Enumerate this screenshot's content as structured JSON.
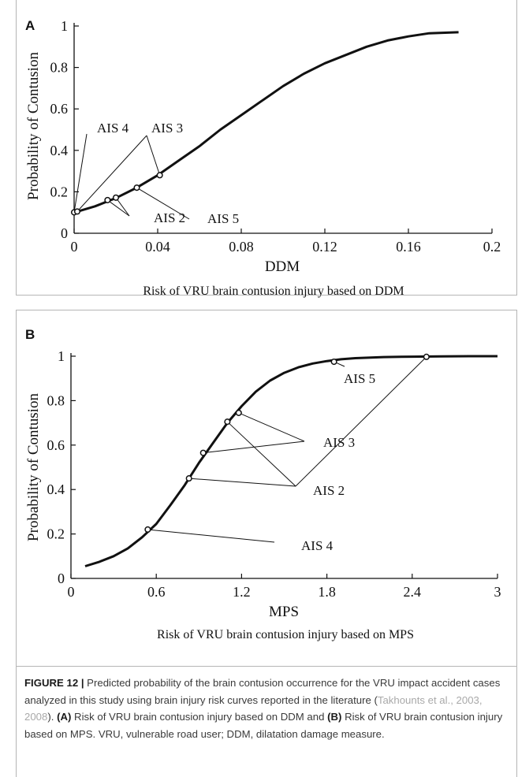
{
  "chart_data": [
    {
      "panel": "A",
      "type": "line",
      "xlabel": "DDM",
      "ylabel": "Probability of Contusion",
      "subtitle": "Risk of VRU brain contusion injury based on DDM",
      "xlim": [
        0,
        0.2
      ],
      "ylim": [
        0,
        1
      ],
      "xticks": [
        0,
        0.04,
        0.08,
        0.12,
        0.16,
        0.2
      ],
      "xtick_labels": [
        "0",
        "0.04",
        "0.08",
        "0.12",
        "0.16",
        "0.2"
      ],
      "yticks": [
        0,
        0.2,
        0.4,
        0.6,
        0.8,
        1
      ],
      "ytick_labels": [
        "0",
        "0.2",
        "0.4",
        "0.6",
        "0.8",
        "1"
      ],
      "curve": {
        "x": [
          0,
          0.01,
          0.02,
          0.03,
          0.04,
          0.05,
          0.06,
          0.07,
          0.08,
          0.09,
          0.1,
          0.11,
          0.12,
          0.13,
          0.14,
          0.15,
          0.16,
          0.17,
          0.184
        ],
        "y": [
          0.1,
          0.13,
          0.17,
          0.22,
          0.28,
          0.35,
          0.42,
          0.5,
          0.57,
          0.64,
          0.71,
          0.77,
          0.82,
          0.86,
          0.9,
          0.93,
          0.95,
          0.965,
          0.97
        ]
      },
      "points": [
        {
          "x": 0.0,
          "y": 0.101
        },
        {
          "x": 0.0015,
          "y": 0.105
        },
        {
          "x": 0.016,
          "y": 0.16
        },
        {
          "x": 0.02,
          "y": 0.172
        },
        {
          "x": 0.03,
          "y": 0.22
        },
        {
          "x": 0.041,
          "y": 0.28
        }
      ],
      "annotations": [
        {
          "label": "AIS 4",
          "points": [
            0
          ]
        },
        {
          "label": "AIS 3",
          "points": [
            1,
            5
          ]
        },
        {
          "label": "AIS 2",
          "points": [
            2,
            3
          ]
        },
        {
          "label": "AIS 5",
          "points": [
            4
          ]
        }
      ]
    },
    {
      "panel": "B",
      "type": "line",
      "xlabel": "MPS",
      "ylabel": "Probability of Contusion",
      "subtitle": "Risk of VRU brain contusion injury based on MPS",
      "xlim": [
        0,
        3
      ],
      "ylim": [
        0,
        1
      ],
      "xticks": [
        0,
        0.6,
        1.2,
        1.8,
        2.4,
        3
      ],
      "xtick_labels": [
        "0",
        "0.6",
        "1.2",
        "1.8",
        "2.4",
        "3"
      ],
      "yticks": [
        0,
        0.2,
        0.4,
        0.6,
        0.8,
        1
      ],
      "ytick_labels": [
        "0",
        "0.2",
        "0.4",
        "0.6",
        "0.8",
        "1"
      ],
      "curve": {
        "x": [
          0.1,
          0.2,
          0.3,
          0.4,
          0.5,
          0.6,
          0.7,
          0.8,
          0.9,
          1.0,
          1.1,
          1.2,
          1.3,
          1.4,
          1.5,
          1.6,
          1.7,
          1.8,
          1.9,
          2.0,
          2.2,
          2.4,
          2.6,
          2.8,
          3.0
        ],
        "y": [
          0.055,
          0.075,
          0.1,
          0.135,
          0.185,
          0.245,
          0.33,
          0.42,
          0.52,
          0.61,
          0.7,
          0.775,
          0.84,
          0.89,
          0.925,
          0.95,
          0.967,
          0.978,
          0.986,
          0.991,
          0.996,
          0.998,
          0.999,
          1.0,
          1.0
        ]
      },
      "points": [
        {
          "x": 0.54,
          "y": 0.22
        },
        {
          "x": 0.83,
          "y": 0.45
        },
        {
          "x": 0.93,
          "y": 0.565
        },
        {
          "x": 1.1,
          "y": 0.705
        },
        {
          "x": 1.18,
          "y": 0.745
        },
        {
          "x": 1.85,
          "y": 0.975
        },
        {
          "x": 2.5,
          "y": 0.997
        }
      ],
      "annotations": [
        {
          "label": "AIS 5",
          "points": [
            5
          ]
        },
        {
          "label": "AIS 3",
          "points": [
            2,
            4
          ]
        },
        {
          "label": "AIS 2",
          "points": [
            1,
            3,
            6
          ]
        },
        {
          "label": "AIS 4",
          "points": [
            0
          ]
        }
      ]
    }
  ],
  "caption": {
    "figure_label": "FIGURE 12 |",
    "text_1": " Predicted probability of the brain contusion occurrence for the VRU impact accident cases analyzed in this study using brain injury risk curves reported in the literature (",
    "ref": "Takhounts et al., 2003, 2008",
    "text_2": "). ",
    "a_label": "(A)",
    "text_3": " Risk of VRU brain contusion injury based on DDM and ",
    "b_label": "(B)",
    "text_4": " Risk of VRU brain contusion injury based on MPS. VRU, vulnerable road user; DDM, dilatation damage measure."
  }
}
